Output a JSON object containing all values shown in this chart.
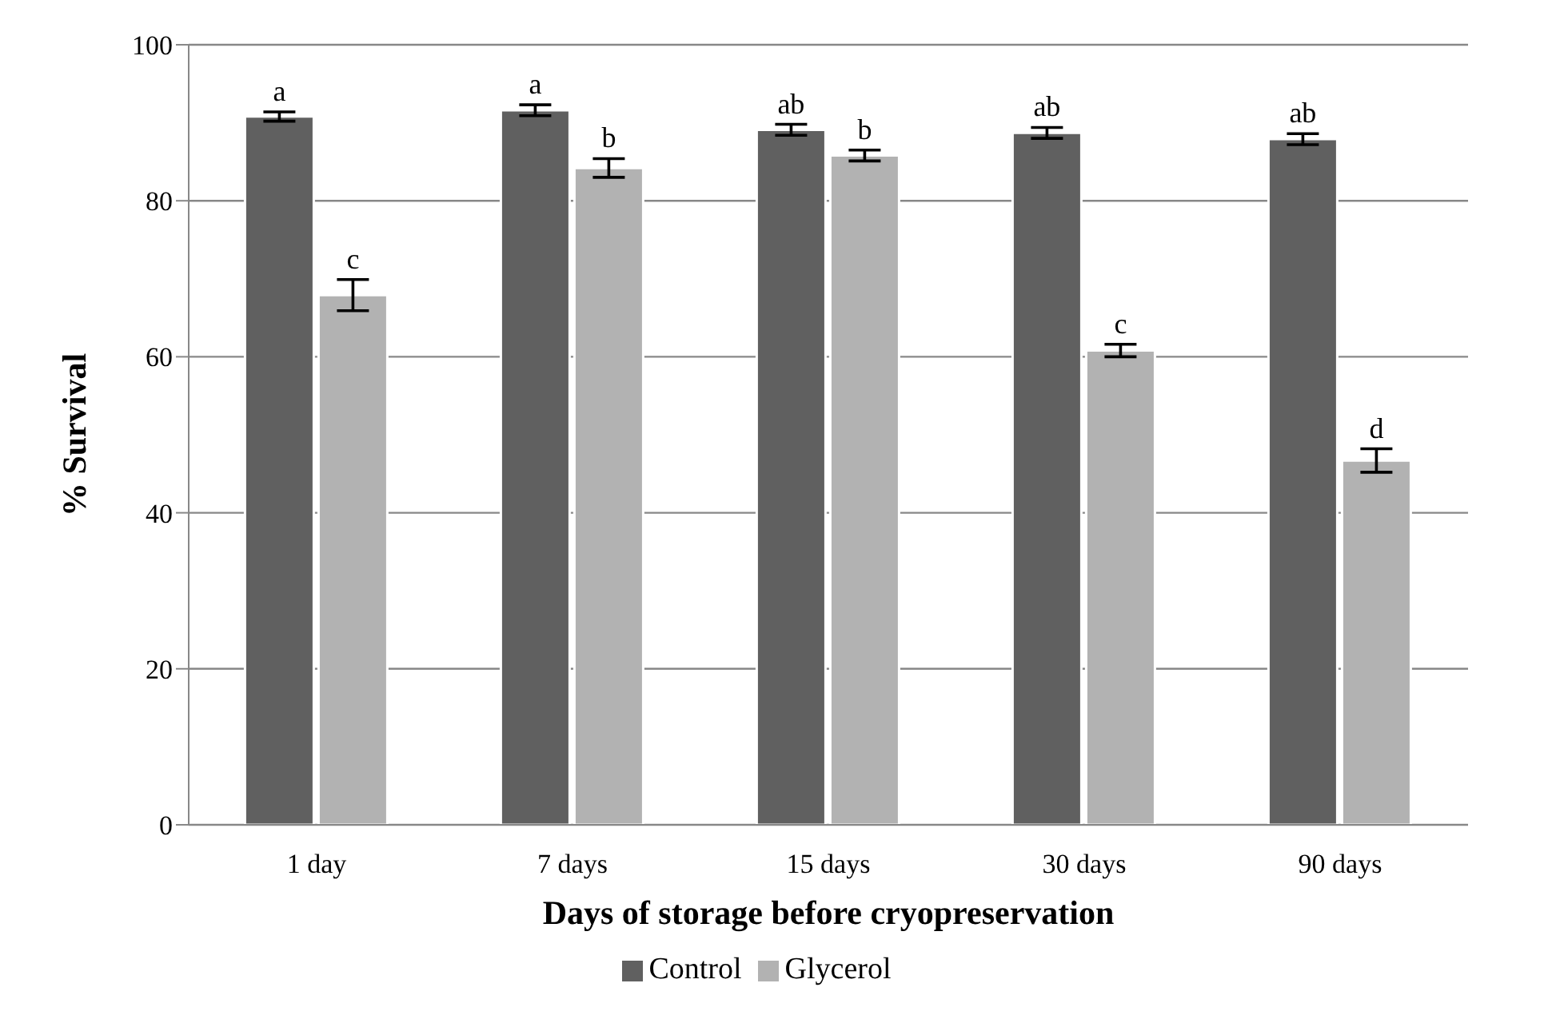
{
  "chart_data": {
    "type": "bar",
    "xlabel": "Days of storage before cryopreservation",
    "ylabel": "% Survival",
    "categories": [
      "1 day",
      "7 days",
      "15 days",
      "30 days",
      "90 days"
    ],
    "series": [
      {
        "name": "Control",
        "color": "#606060",
        "values": [
          90.8,
          91.6,
          89.1,
          88.7,
          87.9
        ],
        "errors": [
          0.6,
          0.7,
          0.7,
          0.7,
          0.7
        ],
        "value_labels": [
          "a",
          "a",
          "ab",
          "ab",
          "ab"
        ]
      },
      {
        "name": "Glycerol",
        "color": "#b2b2b2",
        "values": [
          67.9,
          84.2,
          85.8,
          60.8,
          46.7
        ],
        "errors": [
          2.0,
          1.2,
          0.7,
          0.8,
          1.5
        ],
        "value_labels": [
          "c",
          "b",
          "b",
          "c",
          "d"
        ]
      }
    ],
    "ylim": [
      0,
      100
    ],
    "yticks": [
      0,
      20,
      40,
      60,
      80,
      100
    ],
    "grid": "y",
    "legend": "bottom"
  }
}
